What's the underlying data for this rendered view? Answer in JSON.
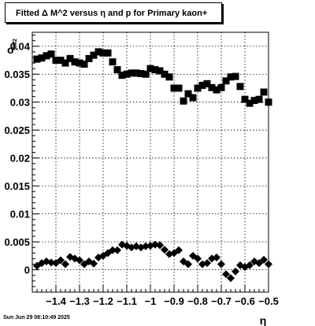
{
  "title": "Fitted Δ M^2 versus η and p for Primary kaon+",
  "timestamp": "Sun Jun 29 08:10:49 2025",
  "chart_data": {
    "type": "scatter",
    "title": "Fitted Δ M^2 versus η and p for Primary kaon+",
    "xlabel": "η",
    "ylabel_main": "σ",
    "ylabel_sub": "dM2",
    "xlim": [
      -1.5,
      -0.5
    ],
    "ylim": [
      -0.004,
      0.0425
    ],
    "xticks": [
      -1.4,
      -1.3,
      -1.2,
      -1.1,
      -1.0,
      -0.9,
      -0.8,
      -0.7,
      -0.6,
      -0.5
    ],
    "xtick_labels": [
      "−1.4",
      "−1.3",
      "−1.2",
      "−1.1",
      "−1",
      "−0.9",
      "−0.8",
      "−0.7",
      "−0.6",
      "−0.5"
    ],
    "yticks": [
      0,
      0.005,
      0.01,
      0.015,
      0.02,
      0.025,
      0.03,
      0.035,
      0.04
    ],
    "ytick_labels": [
      "0",
      "0.005",
      "0.01",
      "0.015",
      "0.02",
      "0.025",
      "0.03",
      "0.035",
      "0.04"
    ],
    "grid": true,
    "series": [
      {
        "marker": "square",
        "x": [
          -1.48,
          -1.46,
          -1.44,
          -1.42,
          -1.4,
          -1.38,
          -1.36,
          -1.34,
          -1.32,
          -1.3,
          -1.28,
          -1.26,
          -1.24,
          -1.22,
          -1.2,
          -1.18,
          -1.16,
          -1.14,
          -1.12,
          -1.1,
          -1.08,
          -1.06,
          -1.04,
          -1.02,
          -1.0,
          -0.98,
          -0.96,
          -0.94,
          -0.92,
          -0.9,
          -0.88,
          -0.86,
          -0.84,
          -0.82,
          -0.8,
          -0.78,
          -0.76,
          -0.74,
          -0.72,
          -0.7,
          -0.68,
          -0.66,
          -0.64,
          -0.62,
          -0.6,
          -0.58,
          -0.56,
          -0.54,
          -0.52,
          -0.5
        ],
        "y": [
          0.0377,
          0.0379,
          0.0383,
          0.0386,
          0.0375,
          0.0375,
          0.037,
          0.0378,
          0.0372,
          0.037,
          0.0368,
          0.0378,
          0.0384,
          0.039,
          0.0388,
          0.0388,
          0.0372,
          0.0358,
          0.0348,
          0.035,
          0.0352,
          0.0352,
          0.0351,
          0.035,
          0.036,
          0.0358,
          0.0356,
          0.035,
          0.0345,
          0.0325,
          0.0325,
          0.0302,
          0.0315,
          0.0308,
          0.0325,
          0.033,
          0.0333,
          0.0326,
          0.0322,
          0.0326,
          0.0338,
          0.0345,
          0.0346,
          0.0328,
          0.0305,
          0.0298,
          0.0303,
          0.0305,
          0.0318,
          0.03
        ]
      },
      {
        "marker": "diamond",
        "x": [
          -1.48,
          -1.46,
          -1.44,
          -1.42,
          -1.4,
          -1.38,
          -1.36,
          -1.34,
          -1.32,
          -1.3,
          -1.28,
          -1.26,
          -1.24,
          -1.22,
          -1.2,
          -1.18,
          -1.16,
          -1.14,
          -1.12,
          -1.1,
          -1.08,
          -1.06,
          -1.04,
          -1.02,
          -1.0,
          -0.98,
          -0.96,
          -0.94,
          -0.92,
          -0.9,
          -0.88,
          -0.86,
          -0.84,
          -0.82,
          -0.8,
          -0.78,
          -0.76,
          -0.74,
          -0.72,
          -0.7,
          -0.68,
          -0.66,
          -0.64,
          -0.62,
          -0.6,
          -0.58,
          -0.56,
          -0.54,
          -0.52,
          -0.5
        ],
        "y": [
          0.0007,
          0.0012,
          0.0015,
          0.0013,
          0.0012,
          0.0017,
          0.001,
          0.0023,
          0.002,
          0.0017,
          0.001,
          0.0015,
          0.0011,
          0.0022,
          0.0025,
          0.003,
          0.0035,
          0.0035,
          0.0045,
          0.0043,
          0.004,
          0.0042,
          0.004,
          0.0042,
          0.0043,
          0.0045,
          0.0044,
          0.0036,
          0.0028,
          0.003,
          0.0035,
          0.0015,
          0.001,
          0.0025,
          0.002,
          0.001,
          0.0012,
          0.002,
          0.0022,
          0.001,
          -0.0008,
          -0.0015,
          -0.0003,
          0.0008,
          0.0005,
          0.0008,
          0.0015,
          0.0012,
          0.0018,
          0.001
        ]
      }
    ]
  }
}
